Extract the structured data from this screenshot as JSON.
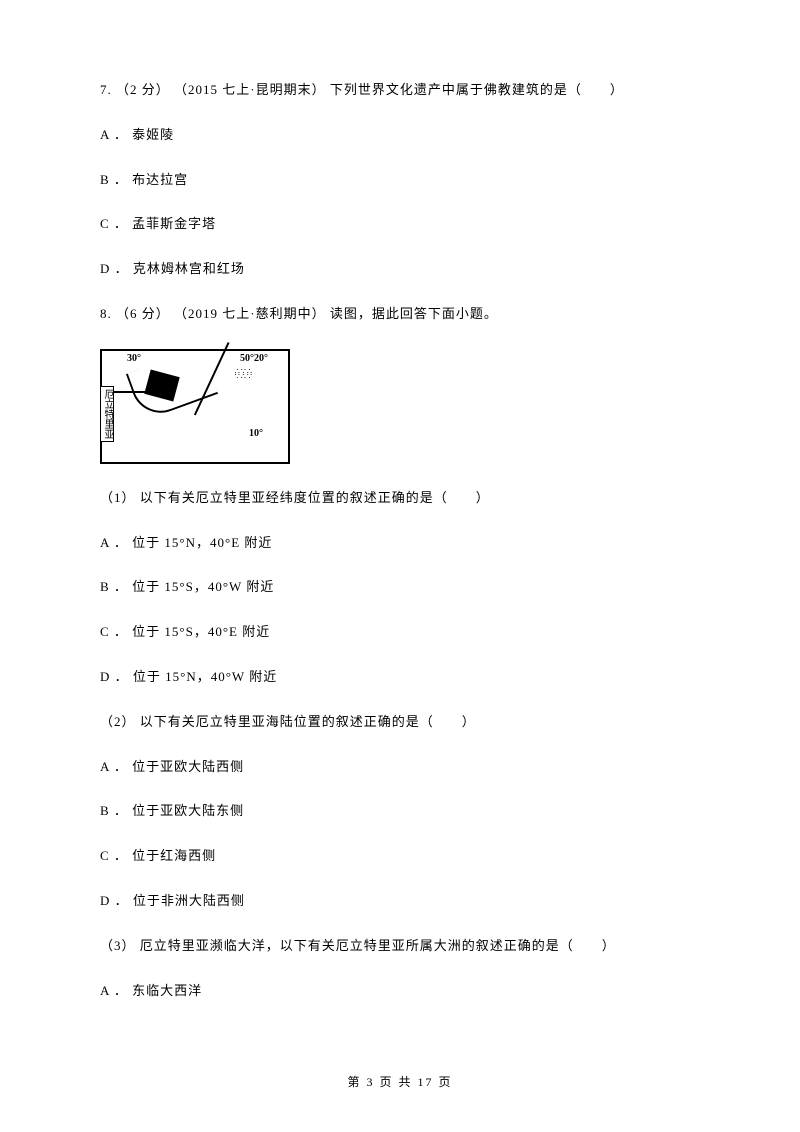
{
  "questions": [
    {
      "number": "7.",
      "points": "（2 分）",
      "source": "（2015 七上·昆明期末）",
      "stem": "下列世界文化遗产中属于佛教建筑的是（　　）",
      "options": [
        {
          "label": "A ．",
          "text": "泰姬陵"
        },
        {
          "label": "B ．",
          "text": "布达拉宫"
        },
        {
          "label": "C ．",
          "text": "孟菲斯金字塔"
        },
        {
          "label": "D ．",
          "text": "克林姆林宫和红场"
        }
      ]
    },
    {
      "number": "8.",
      "points": "（6 分）",
      "source": "（2019 七上·慈利期中）",
      "stem": "读图，据此回答下面小题。",
      "map": {
        "left_label": "厄立特里亚",
        "top_left": "30°",
        "top_right": "50°20°",
        "bottom_right": "10°"
      },
      "subquestions": [
        {
          "number": "（1）",
          "stem": "以下有关厄立特里亚经纬度位置的叙述正确的是（　　）",
          "options": [
            {
              "label": "A ．",
              "text": "位于 15°N，40°E 附近"
            },
            {
              "label": "B ．",
              "text": "位于 15°S，40°W 附近"
            },
            {
              "label": "C ．",
              "text": "位于 15°S，40°E 附近"
            },
            {
              "label": "D ．",
              "text": "位于 15°N，40°W 附近"
            }
          ]
        },
        {
          "number": "（2）",
          "stem": "以下有关厄立特里亚海陆位置的叙述正确的是（　　）",
          "options": [
            {
              "label": "A ．",
              "text": "位于亚欧大陆西侧"
            },
            {
              "label": "B ．",
              "text": "位于亚欧大陆东侧"
            },
            {
              "label": "C ．",
              "text": "位于红海西侧"
            },
            {
              "label": "D ．",
              "text": "位于非洲大陆西侧"
            }
          ]
        },
        {
          "number": "（3）",
          "stem": "厄立特里亚濒临大洋，以下有关厄立特里亚所属大洲的叙述正确的是（　　）",
          "options": [
            {
              "label": "A ．",
              "text": "东临大西洋"
            }
          ]
        }
      ]
    }
  ],
  "footer": {
    "text": "第 3 页 共 17 页"
  }
}
